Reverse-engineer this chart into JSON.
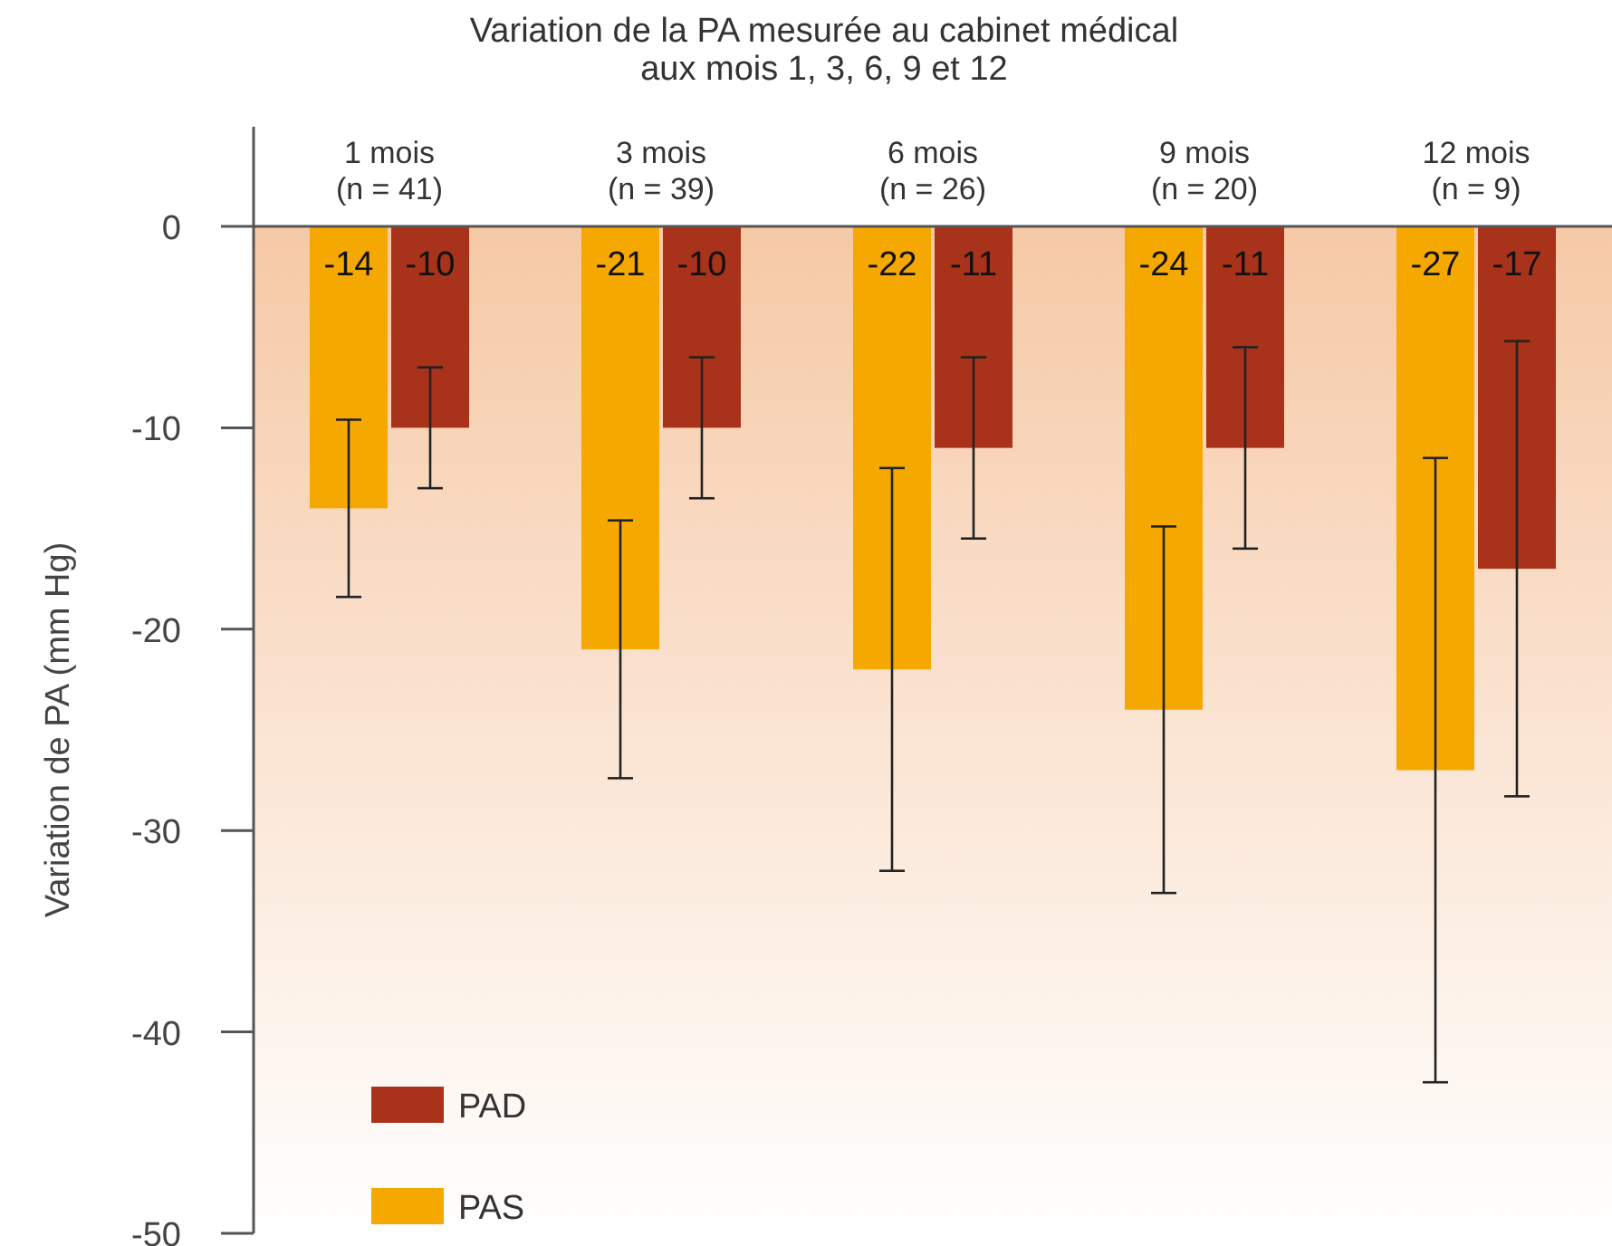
{
  "chart_data": {
    "type": "bar",
    "title": "Variation de la PA mesurée au cabinet médical\naux mois 1, 3, 6, 9 et 12",
    "ylabel": "Variation de PA (mm Hg)",
    "categories": [
      "1 mois\n(n = 41)",
      "3 mois\n(n = 39)",
      "6 mois\n(n = 26)",
      "9 mois\n(n = 20)",
      "12 mois\n(n = 9)"
    ],
    "series": [
      {
        "name": "PAS",
        "color": "#f5a800",
        "values": [
          -14,
          -21,
          -22,
          -24,
          -27
        ],
        "errors": [
          4.4,
          6.4,
          10,
          9.1,
          15.5
        ]
      },
      {
        "name": "PAD",
        "color": "#a8321a",
        "values": [
          -10,
          -10,
          -11,
          -11,
          -17
        ],
        "errors": [
          3,
          3.5,
          4.5,
          5,
          11.3
        ]
      }
    ],
    "ylim": [
      -50,
      0
    ],
    "yticks": [
      0,
      -10,
      -20,
      -30,
      -40,
      -50
    ],
    "grid": false,
    "legend": "bottom left",
    "data_labels": true
  }
}
